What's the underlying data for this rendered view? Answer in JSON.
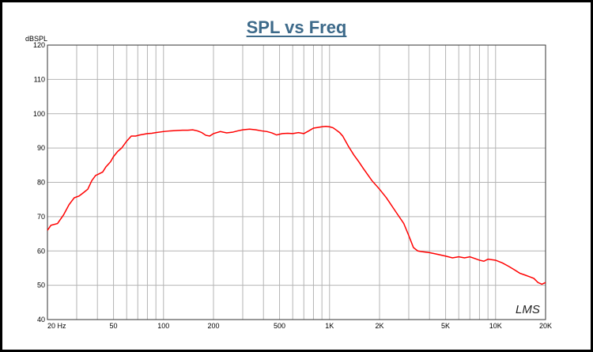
{
  "chart_data": {
    "type": "line",
    "title": "SPL vs Freq",
    "ylabel": "dBSPL",
    "xlabel": "",
    "x_scale": "log",
    "xlim": [
      20,
      20000
    ],
    "ylim": [
      40,
      120
    ],
    "grid": true,
    "x_ticks": [
      {
        "value": 20,
        "label": "20 Hz"
      },
      {
        "value": 50,
        "label": "50"
      },
      {
        "value": 100,
        "label": "100"
      },
      {
        "value": 200,
        "label": "200"
      },
      {
        "value": 500,
        "label": "500"
      },
      {
        "value": 1000,
        "label": "1K"
      },
      {
        "value": 2000,
        "label": "2K"
      },
      {
        "value": 5000,
        "label": "5K"
      },
      {
        "value": 10000,
        "label": "10K"
      },
      {
        "value": 20000,
        "label": "20K"
      }
    ],
    "y_ticks": [
      40,
      50,
      60,
      70,
      80,
      90,
      100,
      110,
      120
    ],
    "watermark": "LMS",
    "series": [
      {
        "color": "#ff0000",
        "x": [
          20,
          21,
          23,
          25,
          27,
          29,
          31,
          33,
          35,
          37,
          39,
          41,
          43,
          45,
          48,
          50,
          53,
          56,
          60,
          64,
          68,
          72,
          76,
          80,
          85,
          90,
          100,
          110,
          120,
          130,
          140,
          150,
          160,
          170,
          180,
          190,
          200,
          220,
          240,
          260,
          280,
          300,
          330,
          360,
          390,
          420,
          450,
          480,
          520,
          560,
          600,
          650,
          700,
          750,
          800,
          850,
          900,
          950,
          1000,
          1050,
          1100,
          1150,
          1200,
          1300,
          1400,
          1500,
          1600,
          1800,
          2000,
          2200,
          2500,
          2800,
          3000,
          3200,
          3400,
          3600,
          4000,
          4500,
          5000,
          5500,
          6000,
          6500,
          7000,
          7500,
          8000,
          8500,
          9000,
          10000,
          11000,
          12000,
          13000,
          14000,
          15000,
          16000,
          17000,
          18000,
          19000,
          20000
        ],
        "y": [
          66.0,
          67.5,
          68.0,
          70.5,
          73.5,
          75.5,
          76.0,
          77.0,
          78.0,
          80.5,
          82.0,
          82.5,
          83.0,
          84.5,
          86.0,
          87.5,
          89.0,
          90.0,
          92.0,
          93.5,
          93.5,
          93.8,
          94.0,
          94.2,
          94.3,
          94.5,
          94.8,
          95.0,
          95.1,
          95.2,
          95.2,
          95.3,
          95.0,
          94.5,
          93.7,
          93.5,
          94.2,
          94.8,
          94.4,
          94.6,
          95.0,
          95.3,
          95.5,
          95.3,
          95.0,
          94.8,
          94.4,
          93.8,
          94.2,
          94.3,
          94.2,
          94.5,
          94.2,
          95.0,
          95.8,
          96.0,
          96.2,
          96.3,
          96.2,
          95.9,
          95.2,
          94.5,
          93.5,
          90.5,
          88.0,
          86.0,
          84.0,
          80.5,
          78.0,
          75.5,
          71.5,
          68.0,
          64.5,
          61.0,
          60.0,
          59.8,
          59.5,
          59.0,
          58.5,
          58.0,
          58.3,
          58.0,
          58.3,
          57.8,
          57.3,
          57.0,
          57.6,
          57.3,
          56.5,
          55.5,
          54.5,
          53.5,
          53.0,
          52.5,
          52.0,
          50.8,
          50.3,
          50.8
        ]
      }
    ]
  }
}
